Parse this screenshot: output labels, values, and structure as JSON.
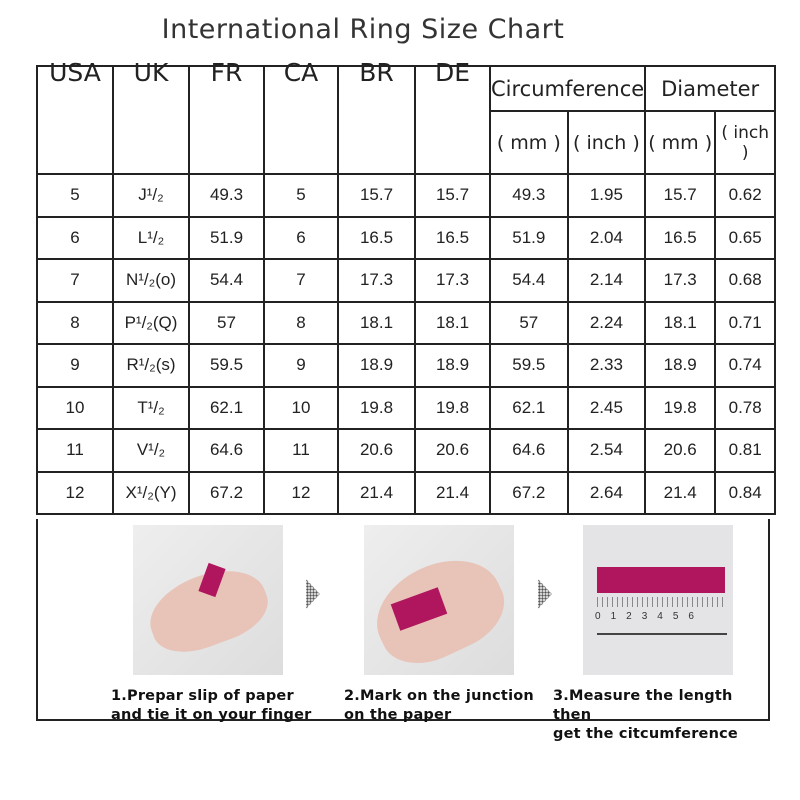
{
  "title": "International Ring Size Chart",
  "headers": [
    "USA",
    "UK",
    "FR",
    "CA",
    "BR",
    "DE",
    "Circumference",
    "Diameter"
  ],
  "subheaders": [
    "( mm )",
    "( inch )",
    "( mm )",
    "( inch )"
  ],
  "rows": [
    [
      "5",
      "J¹/₂",
      "49.3",
      "5",
      "15.7",
      "15.7",
      "49.3",
      "1.95",
      "15.7",
      "0.62"
    ],
    [
      "6",
      "L¹/₂",
      "51.9",
      "6",
      "16.5",
      "16.5",
      "51.9",
      "2.04",
      "16.5",
      "0.65"
    ],
    [
      "7",
      "N¹/₂(o)",
      "54.4",
      "7",
      "17.3",
      "17.3",
      "54.4",
      "2.14",
      "17.3",
      "0.68"
    ],
    [
      "8",
      "P¹/₂(Q)",
      "57",
      "8",
      "18.1",
      "18.1",
      "57",
      "2.24",
      "18.1",
      "0.71"
    ],
    [
      "9",
      "R¹/₂(s)",
      "59.5",
      "9",
      "18.9",
      "18.9",
      "59.5",
      "2.33",
      "18.9",
      "0.74"
    ],
    [
      "10",
      "T¹/₂",
      "62.1",
      "10",
      "19.8",
      "19.8",
      "62.1",
      "2.45",
      "19.8",
      "0.78"
    ],
    [
      "11",
      "V¹/₂",
      "64.6",
      "11",
      "20.6",
      "20.6",
      "64.6",
      "2.54",
      "20.6",
      "0.81"
    ],
    [
      "12",
      "X¹/₂(Y)",
      "67.2",
      "12",
      "21.4",
      "21.4",
      "67.2",
      "2.64",
      "21.4",
      "0.84"
    ]
  ],
  "steps": [
    {
      "line1": "1.Prepar slip of paper",
      "line2": "and tie it on your finger"
    },
    {
      "line1": "2.Mark on the junction",
      "line2": "on the paper"
    },
    {
      "line1": "3.Measure the length then",
      "line2": "get the citcumference"
    }
  ],
  "ruler_ticks": [
    "0",
    "1",
    "2",
    "3",
    "4",
    "5",
    "6"
  ],
  "colors": {
    "paper": "#b0165e",
    "border": "#222222"
  }
}
